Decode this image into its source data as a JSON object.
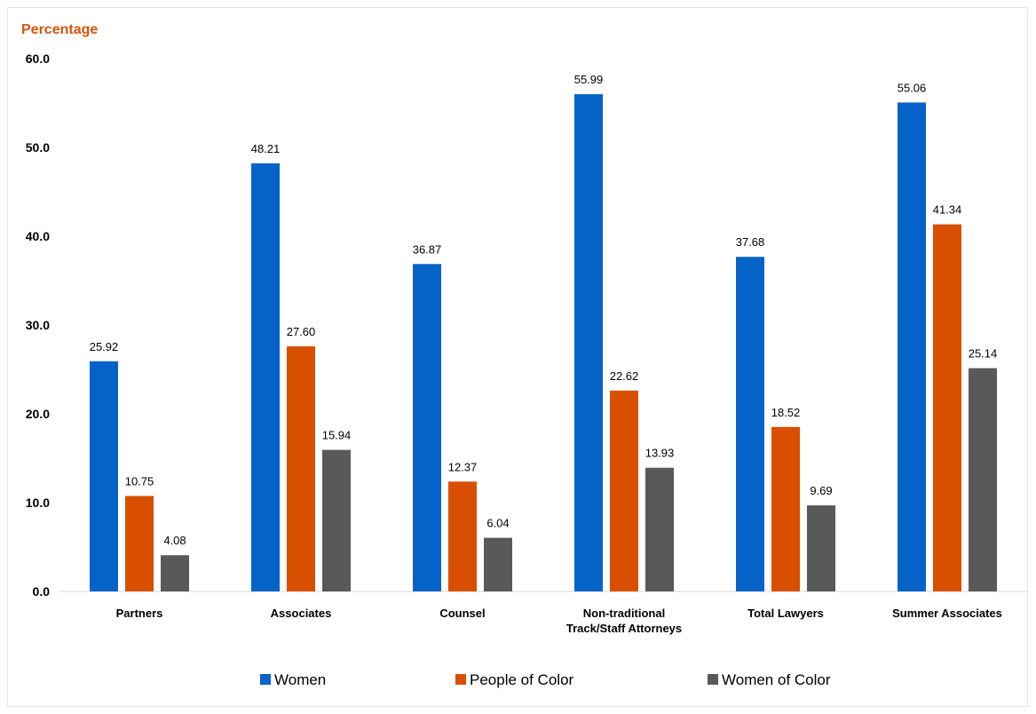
{
  "chart_data": {
    "type": "bar",
    "title": "",
    "ylabel": "Percentage",
    "xlabel": "",
    "ylim": [
      0,
      60
    ],
    "yticks": [
      "0.0",
      "10.0",
      "20.0",
      "30.0",
      "40.0",
      "50.0",
      "60.0"
    ],
    "grid": false,
    "legend_position": "bottom",
    "categories": [
      [
        "Partners"
      ],
      [
        "Associates"
      ],
      [
        "Counsel"
      ],
      [
        "Non-traditional",
        "Track/Staff Attorneys"
      ],
      [
        "Total Lawyers"
      ],
      [
        "Summer Associates"
      ]
    ],
    "series": [
      {
        "name": "Women",
        "color": "#0563c8",
        "values": [
          25.92,
          48.21,
          36.87,
          55.99,
          37.68,
          55.06
        ],
        "labels": [
          "25.92",
          "48.21",
          "36.87",
          "55.99",
          "37.68",
          "55.06"
        ]
      },
      {
        "name": "People of Color",
        "color": "#d94f00",
        "values": [
          10.75,
          27.6,
          12.37,
          22.62,
          18.52,
          41.34
        ],
        "labels": [
          "10.75",
          "27.60",
          "12.37",
          "22.62",
          "18.52",
          "41.34"
        ]
      },
      {
        "name": "Women of Color",
        "color": "#595959",
        "values": [
          4.08,
          15.94,
          6.04,
          13.93,
          9.69,
          25.14
        ],
        "labels": [
          "4.08",
          "15.94",
          "6.04",
          "13.93",
          "9.69",
          "25.14"
        ]
      }
    ]
  }
}
